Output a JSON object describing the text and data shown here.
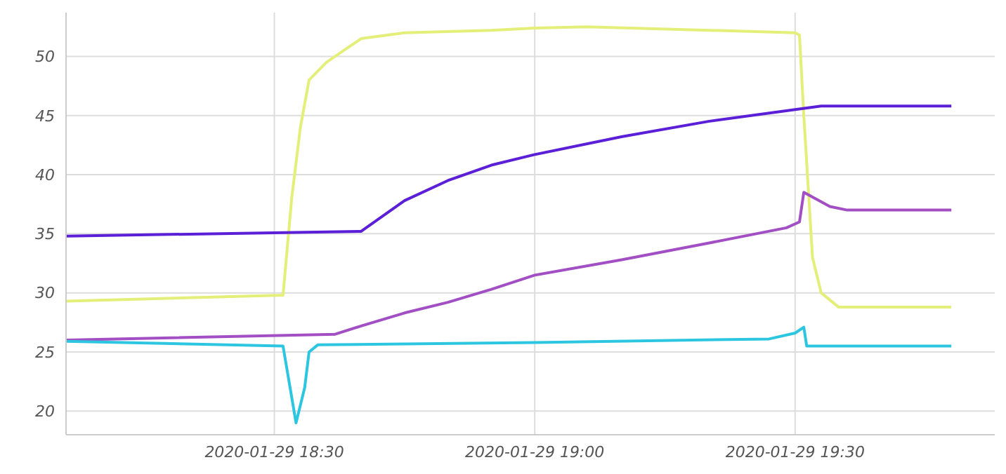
{
  "chart_data": {
    "type": "line",
    "xlim": [
      "2020-01-29T18:06",
      "2020-01-29T19:53"
    ],
    "xticks": [
      {
        "value": "2020-01-29T18:30",
        "label": "2020-01-29 18:30"
      },
      {
        "value": "2020-01-29T19:00",
        "label": "2020-01-29 19:00"
      },
      {
        "value": "2020-01-29T19:30",
        "label": "2020-01-29 19:30"
      }
    ],
    "ylim": [
      18,
      53.7
    ],
    "yticks": [
      20,
      25,
      30,
      35,
      40,
      45,
      50
    ],
    "grid": true,
    "legend": false,
    "marker": "none",
    "line_style": "solid",
    "series": [
      {
        "color": "#e4ef7a",
        "x": [
          "2020-01-29T18:06",
          "2020-01-29T18:31",
          "2020-01-29T18:32",
          "2020-01-29T18:33",
          "2020-01-29T18:34",
          "2020-01-29T18:36",
          "2020-01-29T18:38",
          "2020-01-29T18:40",
          "2020-01-29T18:45",
          "2020-01-29T18:55",
          "2020-01-29T19:00",
          "2020-01-29T19:06",
          "2020-01-29T19:30",
          "2020-01-29T19:30:30",
          "2020-01-29T19:31",
          "2020-01-29T19:32",
          "2020-01-29T19:33",
          "2020-01-29T19:35",
          "2020-01-29T19:48"
        ],
        "values": [
          29.3,
          29.8,
          38,
          44,
          48,
          49.5,
          50.5,
          51.5,
          52,
          52.2,
          52.4,
          52.5,
          52,
          51.8,
          45,
          33,
          30,
          28.8,
          28.8
        ]
      },
      {
        "color": "#5a1fd6",
        "x": [
          "2020-01-29T18:06",
          "2020-01-29T18:40",
          "2020-01-29T18:45",
          "2020-01-29T18:50",
          "2020-01-29T18:55",
          "2020-01-29T19:00",
          "2020-01-29T19:10",
          "2020-01-29T19:20",
          "2020-01-29T19:30",
          "2020-01-29T19:33",
          "2020-01-29T19:48"
        ],
        "values": [
          34.8,
          35.2,
          37.8,
          39.5,
          40.8,
          41.7,
          43.2,
          44.5,
          45.5,
          45.8,
          45.8
        ]
      },
      {
        "color": "#a24fc4",
        "x": [
          "2020-01-29T18:06",
          "2020-01-29T18:37",
          "2020-01-29T18:40",
          "2020-01-29T18:45",
          "2020-01-29T18:50",
          "2020-01-29T18:55",
          "2020-01-29T19:00",
          "2020-01-29T19:10",
          "2020-01-29T19:20",
          "2020-01-29T19:29",
          "2020-01-29T19:30:30",
          "2020-01-29T19:31",
          "2020-01-29T19:34",
          "2020-01-29T19:36",
          "2020-01-29T19:48"
        ],
        "values": [
          26,
          26.5,
          27.2,
          28.3,
          29.2,
          30.3,
          31.5,
          32.8,
          34.2,
          35.5,
          36,
          38.5,
          37.3,
          37,
          37
        ]
      },
      {
        "color": "#2cc6e0",
        "x": [
          "2020-01-29T18:06",
          "2020-01-29T18:31",
          "2020-01-29T18:32:30",
          "2020-01-29T18:33:30",
          "2020-01-29T18:34",
          "2020-01-29T18:35",
          "2020-01-29T19:00",
          "2020-01-29T19:27",
          "2020-01-29T19:30",
          "2020-01-29T19:31",
          "2020-01-29T19:31:20",
          "2020-01-29T19:48"
        ],
        "values": [
          25.9,
          25.5,
          19,
          22,
          25,
          25.6,
          25.8,
          26.1,
          26.6,
          27.1,
          25.5,
          25.5
        ]
      }
    ]
  }
}
